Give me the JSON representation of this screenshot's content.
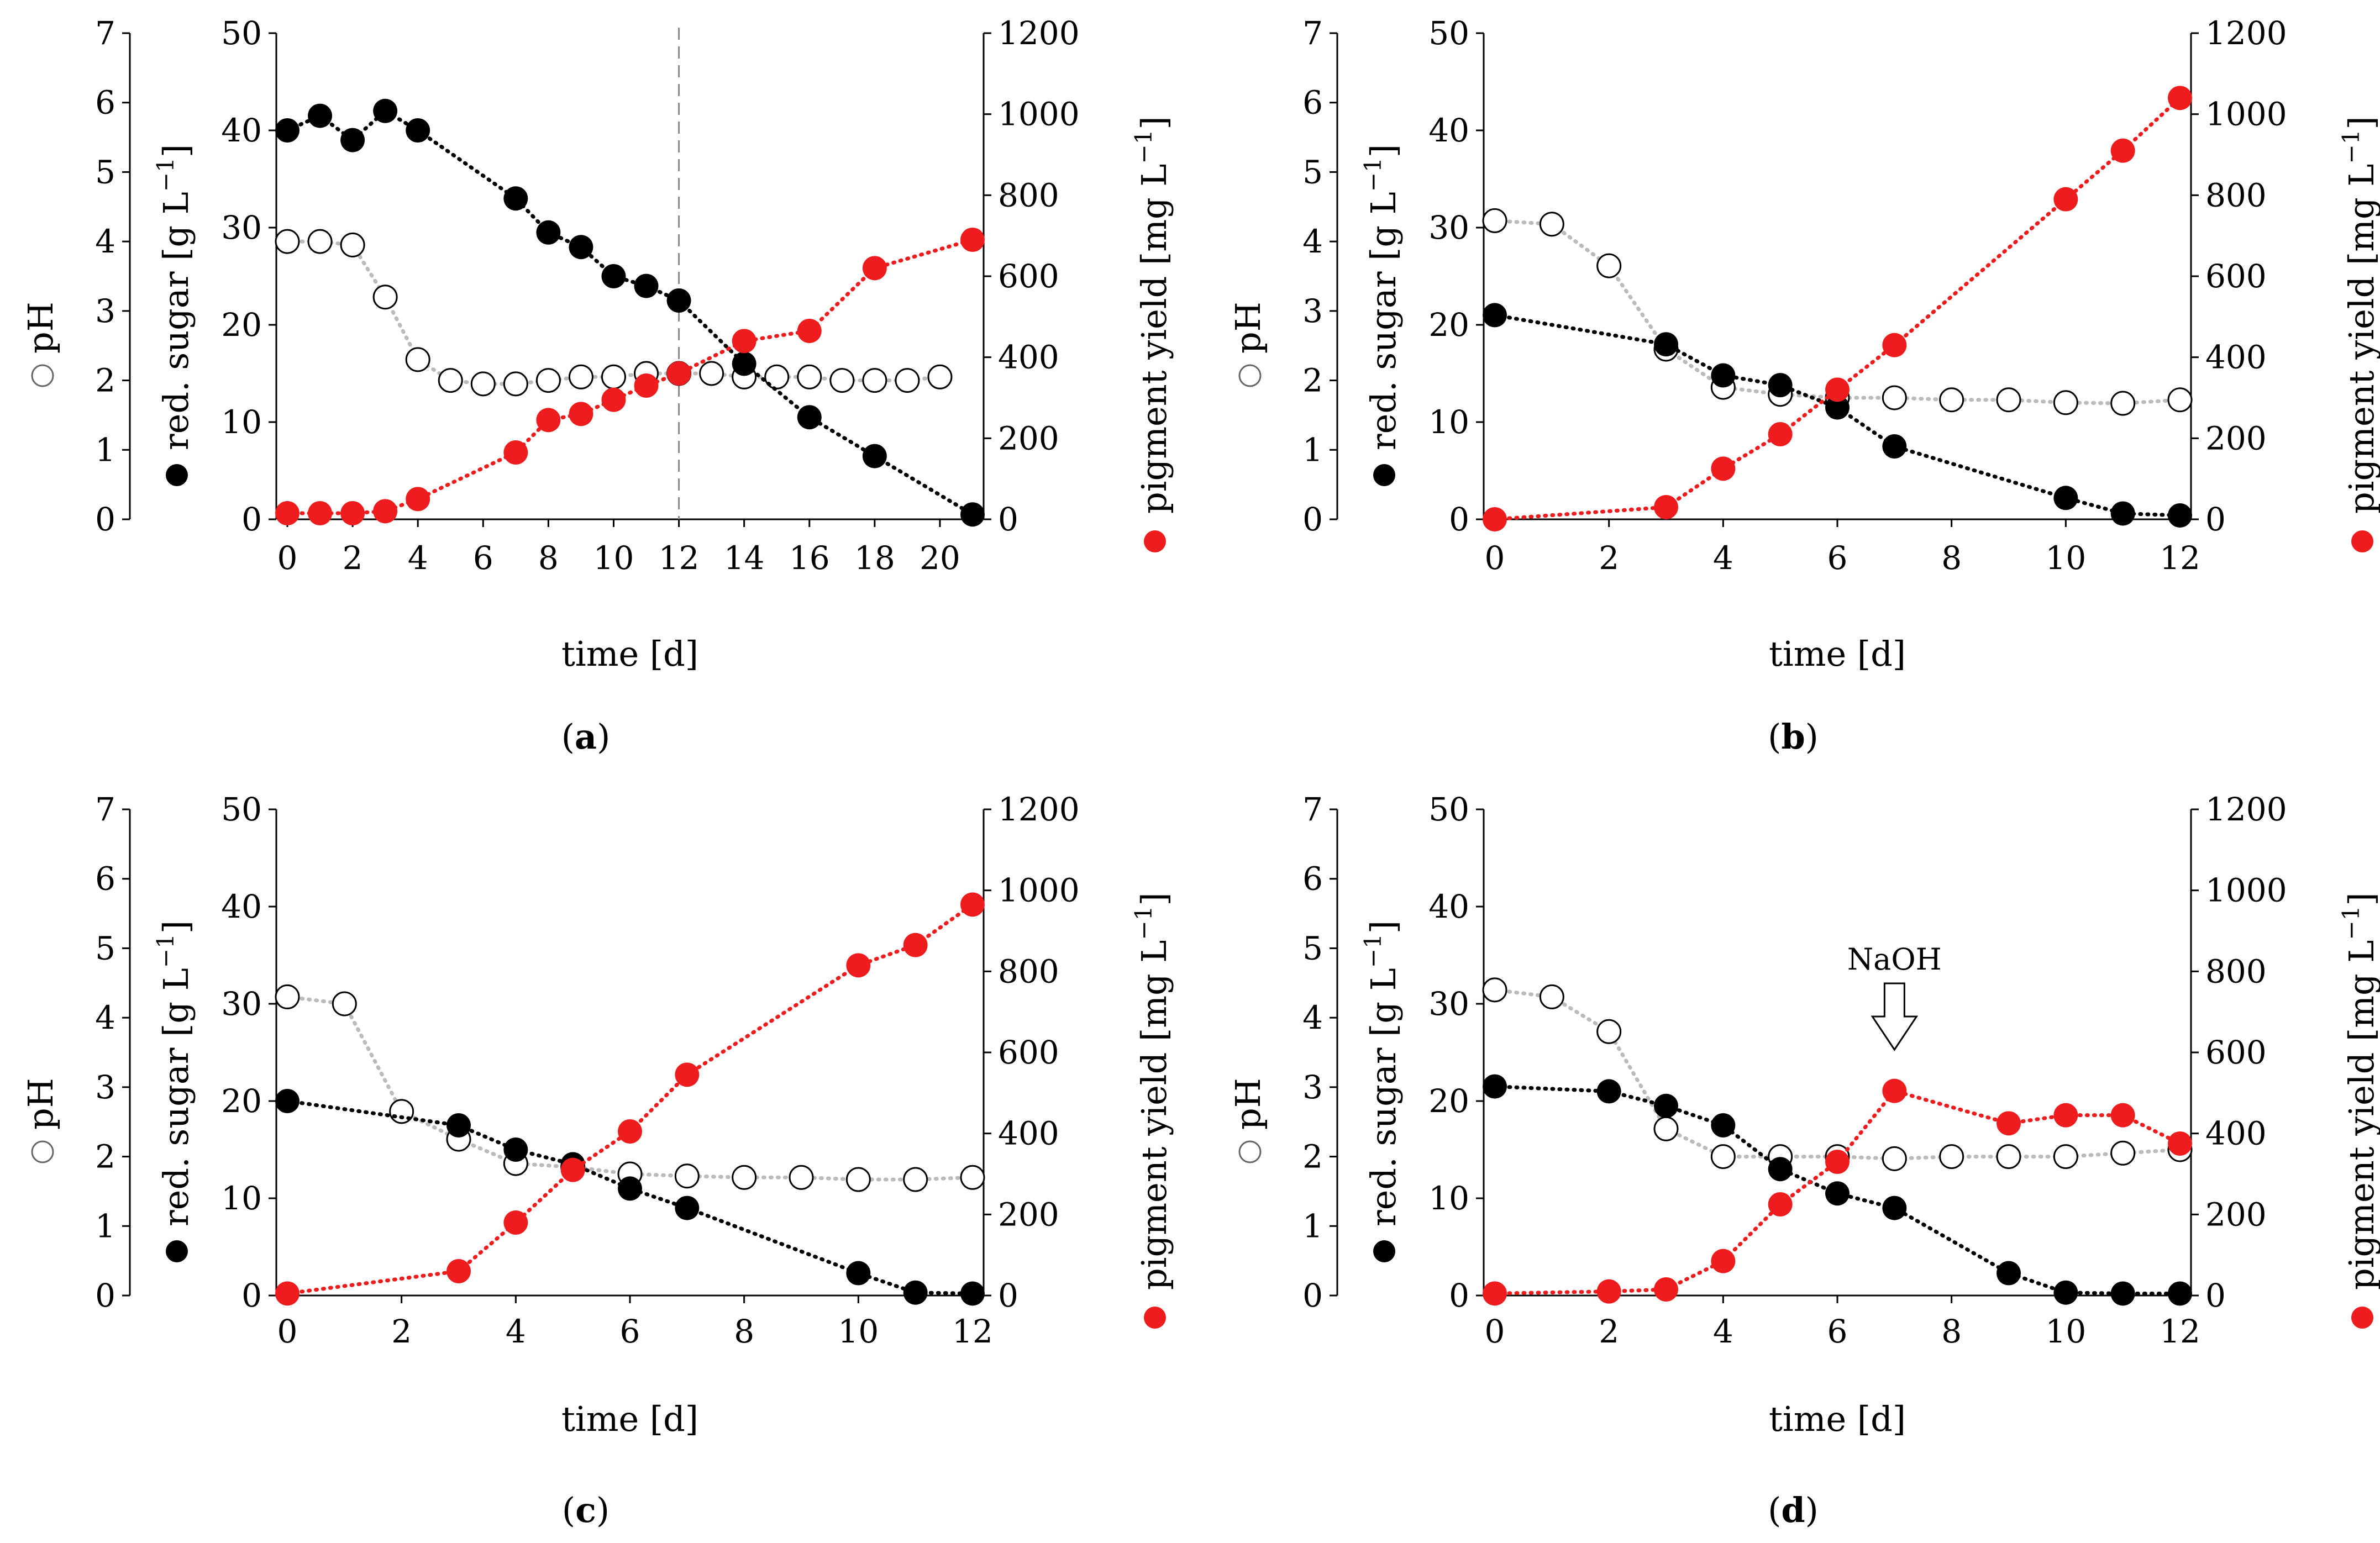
{
  "chart_data": [
    {
      "type": "line",
      "panel": "a",
      "caption": {
        "open": "(",
        "letter": "a",
        "close": ")"
      },
      "xlabel": "time [d]",
      "xlim": [
        0,
        21
      ],
      "xticks": [
        0,
        2,
        4,
        6,
        8,
        10,
        12,
        14,
        16,
        18,
        20
      ],
      "y_ph": {
        "label": "pH",
        "lim": [
          0,
          7
        ],
        "ticks": [
          0,
          1,
          2,
          3,
          4,
          5,
          6,
          7
        ]
      },
      "y_sugar": {
        "label": "red. sugar [g L",
        "exponent": "−1",
        "close": "]",
        "lim": [
          0,
          50
        ],
        "ticks": [
          0,
          10,
          20,
          30,
          40,
          50
        ]
      },
      "y_pigment": {
        "label": "pigment yield [mg L",
        "exponent": "−1",
        "close": "]",
        "lim": [
          0,
          1200
        ],
        "ticks": [
          0,
          200,
          400,
          600,
          800,
          1000,
          1200
        ]
      },
      "vline": 12,
      "series": [
        {
          "name": "pH",
          "axis": "ph",
          "color": "#bbbbbb",
          "marker": "open-circle",
          "x": [
            0,
            1,
            2,
            3,
            4,
            5,
            6,
            7,
            8,
            9,
            10,
            11,
            12,
            13,
            14,
            15,
            16,
            17,
            18,
            19,
            20
          ],
          "values": [
            4.0,
            4.0,
            3.95,
            3.2,
            2.3,
            2.0,
            1.95,
            1.95,
            2.0,
            2.05,
            2.05,
            2.1,
            2.1,
            2.1,
            2.05,
            2.05,
            2.05,
            2.0,
            2.0,
            2.0,
            2.05
          ]
        },
        {
          "name": "red. sugar",
          "axis": "sugar",
          "color": "#000000",
          "marker": "filled-circle",
          "x": [
            0,
            1,
            2,
            3,
            4,
            7,
            8,
            9,
            10,
            11,
            12,
            14,
            16,
            18,
            21
          ],
          "values": [
            40,
            41.5,
            39,
            42,
            40,
            33,
            29.5,
            28,
            25,
            24,
            22.5,
            16,
            10.5,
            6.5,
            0.5
          ]
        },
        {
          "name": "pigment yield",
          "axis": "pigment",
          "color": "#ee1c1c",
          "marker": "filled-circle",
          "x": [
            0,
            1,
            2,
            3,
            4,
            7,
            8,
            9,
            10,
            11,
            12,
            14,
            16,
            18,
            21
          ],
          "values": [
            15,
            15,
            15,
            20,
            50,
            165,
            245,
            260,
            295,
            330,
            360,
            440,
            465,
            620,
            690
          ]
        }
      ]
    },
    {
      "type": "line",
      "panel": "b",
      "caption": {
        "open": "(",
        "letter": "b",
        "close": ")"
      },
      "xlabel": "time [d]",
      "xlim": [
        0,
        12
      ],
      "xticks": [
        0,
        2,
        4,
        6,
        8,
        10,
        12
      ],
      "y_ph": {
        "label": "pH",
        "lim": [
          0,
          7
        ],
        "ticks": [
          0,
          1,
          2,
          3,
          4,
          5,
          6,
          7
        ]
      },
      "y_sugar": {
        "label": "red. sugar [g L",
        "exponent": "−1",
        "close": "]",
        "lim": [
          0,
          50
        ],
        "ticks": [
          0,
          10,
          20,
          30,
          40,
          50
        ]
      },
      "y_pigment": {
        "label": "pigment yield [mg L",
        "exponent": "−1",
        "close": "]",
        "lim": [
          0,
          1200
        ],
        "ticks": [
          0,
          200,
          400,
          600,
          800,
          1000,
          1200
        ]
      },
      "series": [
        {
          "name": "pH",
          "axis": "ph",
          "color": "#bbbbbb",
          "marker": "open-circle",
          "x": [
            0,
            1,
            2,
            3,
            4,
            5,
            6,
            7,
            8,
            9,
            10,
            11,
            12
          ],
          "values": [
            4.3,
            4.25,
            3.65,
            2.45,
            1.9,
            1.8,
            1.75,
            1.75,
            1.72,
            1.72,
            1.68,
            1.67,
            1.72
          ]
        },
        {
          "name": "red. sugar",
          "axis": "sugar",
          "color": "#000000",
          "marker": "filled-circle",
          "x": [
            0,
            3,
            4,
            5,
            6,
            7,
            10,
            11,
            12
          ],
          "values": [
            21,
            18,
            14.8,
            13.8,
            11.5,
            7.5,
            2.2,
            0.6,
            0.4
          ]
        },
        {
          "name": "pigment yield",
          "axis": "pigment",
          "color": "#ee1c1c",
          "marker": "filled-circle",
          "x": [
            0,
            3,
            4,
            5,
            6,
            7,
            10,
            11,
            12
          ],
          "values": [
            0,
            30,
            125,
            210,
            320,
            430,
            790,
            910,
            1040
          ]
        }
      ]
    },
    {
      "type": "line",
      "panel": "c",
      "caption": {
        "open": "(",
        "letter": "c",
        "close": ")"
      },
      "xlabel": "time [d]",
      "xlim": [
        0,
        12
      ],
      "xticks": [
        0,
        2,
        4,
        6,
        8,
        10,
        12
      ],
      "y_ph": {
        "label": "pH",
        "lim": [
          0,
          7
        ],
        "ticks": [
          0,
          1,
          2,
          3,
          4,
          5,
          6,
          7
        ]
      },
      "y_sugar": {
        "label": "red. sugar [g L",
        "exponent": "−1",
        "close": "]",
        "lim": [
          0,
          50
        ],
        "ticks": [
          0,
          10,
          20,
          30,
          40,
          50
        ]
      },
      "y_pigment": {
        "label": "pigment yield [mg L",
        "exponent": "−1",
        "close": "]",
        "lim": [
          0,
          1200
        ],
        "ticks": [
          0,
          200,
          400,
          600,
          800,
          1000,
          1200
        ]
      },
      "series": [
        {
          "name": "pH",
          "axis": "ph",
          "color": "#bbbbbb",
          "marker": "open-circle",
          "x": [
            0,
            1,
            2,
            3,
            4,
            5,
            6,
            7,
            8,
            9,
            10,
            11,
            12
          ],
          "values": [
            4.3,
            4.2,
            2.65,
            2.25,
            1.9,
            1.85,
            1.75,
            1.72,
            1.7,
            1.7,
            1.67,
            1.67,
            1.7
          ]
        },
        {
          "name": "red. sugar",
          "axis": "sugar",
          "color": "#000000",
          "marker": "filled-circle",
          "x": [
            0,
            3,
            4,
            5,
            6,
            7,
            10,
            11,
            12
          ],
          "values": [
            20,
            17.5,
            15,
            13.5,
            11,
            9,
            2.3,
            0.3,
            0.2
          ]
        },
        {
          "name": "pigment yield",
          "axis": "pigment",
          "color": "#ee1c1c",
          "marker": "filled-circle",
          "x": [
            0,
            3,
            4,
            5,
            6,
            7,
            10,
            11,
            12
          ],
          "values": [
            5,
            60,
            180,
            310,
            405,
            545,
            815,
            865,
            965
          ]
        }
      ]
    },
    {
      "type": "line",
      "panel": "d",
      "caption": {
        "open": "(",
        "letter": "d",
        "close": ")"
      },
      "xlabel": "time [d]",
      "xlim": [
        0,
        12
      ],
      "xticks": [
        0,
        2,
        4,
        6,
        8,
        10,
        12
      ],
      "y_ph": {
        "label": "pH",
        "lim": [
          0,
          7
        ],
        "ticks": [
          0,
          1,
          2,
          3,
          4,
          5,
          6,
          7
        ]
      },
      "y_sugar": {
        "label": "red. sugar [g L",
        "exponent": "−1",
        "close": "]",
        "lim": [
          0,
          50
        ],
        "ticks": [
          0,
          10,
          20,
          30,
          40,
          50
        ]
      },
      "y_pigment": {
        "label": "pigment yield [mg L",
        "exponent": "−1",
        "close": "]",
        "lim": [
          0,
          1200
        ],
        "ticks": [
          0,
          200,
          400,
          600,
          800,
          1000,
          1200
        ]
      },
      "annotation": {
        "text": "NaOH",
        "x": 7
      },
      "series": [
        {
          "name": "pH",
          "axis": "ph",
          "color": "#bbbbbb",
          "marker": "open-circle",
          "x": [
            0,
            1,
            2,
            3,
            4,
            5,
            6,
            7,
            8,
            9,
            10,
            11,
            12
          ],
          "values": [
            4.4,
            4.3,
            3.8,
            2.4,
            2.0,
            2.0,
            2.0,
            1.97,
            2.0,
            2.0,
            2.0,
            2.05,
            2.1
          ]
        },
        {
          "name": "red. sugar",
          "axis": "sugar",
          "color": "#000000",
          "marker": "filled-circle",
          "x": [
            0,
            2,
            3,
            4,
            5,
            6,
            7,
            9,
            10,
            11,
            12
          ],
          "values": [
            21.5,
            21,
            19.5,
            17.5,
            13,
            10.5,
            9,
            2.3,
            0.3,
            0.2,
            0.2
          ]
        },
        {
          "name": "pigment yield",
          "axis": "pigment",
          "color": "#ee1c1c",
          "marker": "filled-circle",
          "x": [
            0,
            2,
            3,
            4,
            5,
            6,
            7,
            9,
            10,
            11,
            12
          ],
          "values": [
            5,
            10,
            15,
            85,
            225,
            330,
            505,
            425,
            445,
            445,
            375
          ]
        }
      ]
    }
  ]
}
